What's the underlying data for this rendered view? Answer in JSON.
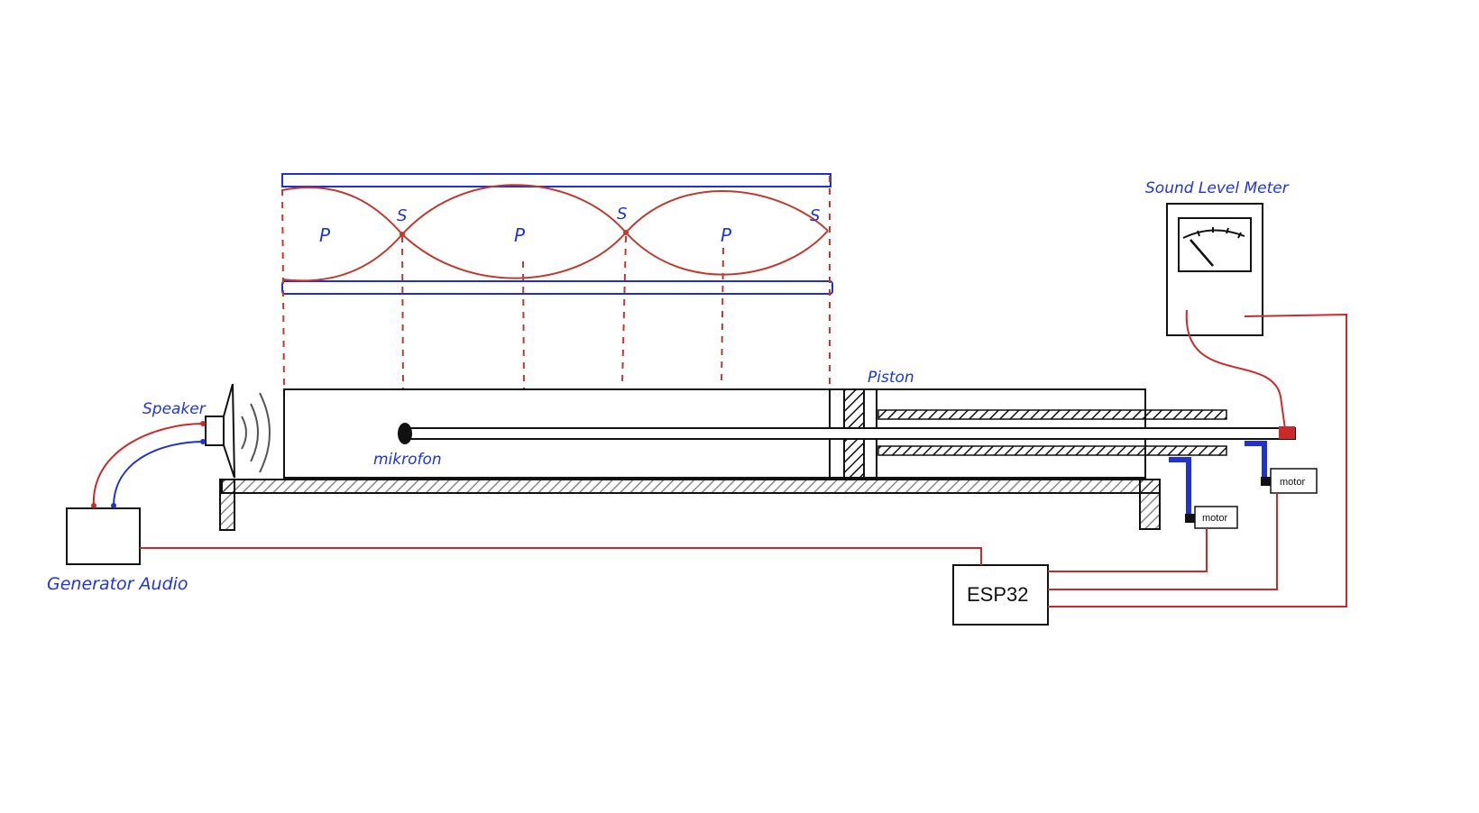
{
  "labels": {
    "speaker": "Speaker",
    "mikrofon": "mikrofon",
    "generator": "Generator Audio",
    "piston": "Piston",
    "meter": "Sound Level Meter",
    "esp32": "ESP32",
    "motor_lower": "motor",
    "motor_upper": "motor"
  },
  "wave_marks": {
    "antinode_1": "P",
    "node_1": "S",
    "antinode_2": "P",
    "node_2": "S",
    "antinode_3": "P",
    "node_3": "S"
  },
  "colors": {
    "ink": "#111111",
    "wire_red": "#cc2a2a",
    "wire_blue": "#2030d0",
    "label_blue": "#1f35d8",
    "wave_red": "#c0392b",
    "bracket_blue": "#2233cc"
  }
}
